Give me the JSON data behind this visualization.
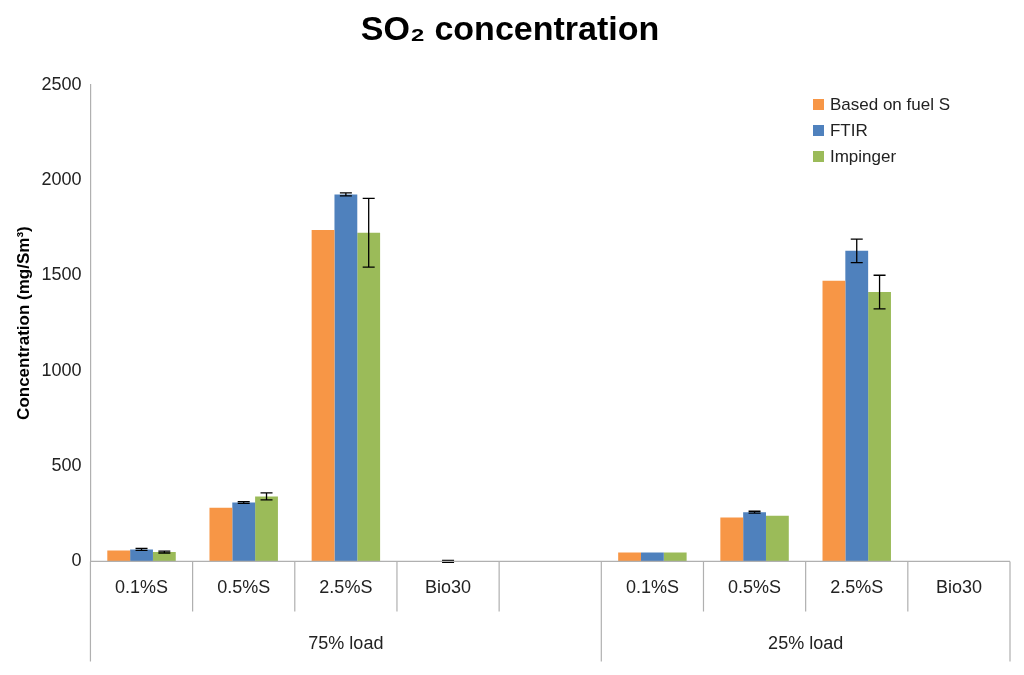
{
  "chart_data": {
    "type": "bar",
    "title": "SO₂ concentration",
    "ylabel": "Concentration (mg/Sm³)",
    "categories": [
      "0.1%S",
      "0.5%S",
      "2.5%S",
      "Bio30",
      null,
      "0.1%S",
      "0.5%S",
      "2.5%S",
      "Bio30"
    ],
    "annotations": [
      "75% load",
      "25% load"
    ],
    "series": [
      {
        "name": "Based on fuel S",
        "color": "#f79646",
        "values": [
          57,
          282,
          1738,
          0,
          null,
          47,
          230,
          1472,
          0
        ]
      },
      {
        "name": "FTIR",
        "color": "#4f81bd",
        "values": [
          63,
          309,
          1925,
          0,
          null,
          47,
          258,
          1629,
          0
        ],
        "errors": [
          5,
          5,
          8,
          5,
          null,
          null,
          5,
          62,
          null
        ]
      },
      {
        "name": "Impinger",
        "color": "#9bbb59",
        "values": [
          49,
          341,
          1724,
          0,
          null,
          47,
          240,
          1413,
          0
        ],
        "errors": [
          5,
          18,
          180,
          null,
          null,
          null,
          null,
          88,
          null
        ]
      }
    ],
    "ylim": [
      0,
      2500
    ],
    "yticks": [
      0,
      500,
      1000,
      1500,
      2000,
      2500
    ],
    "grid": false,
    "legend": "top right"
  }
}
